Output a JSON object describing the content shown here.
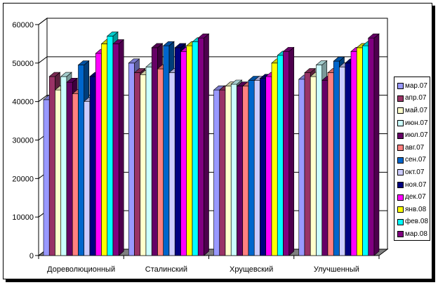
{
  "chart_data": {
    "type": "bar",
    "categories": [
      "Дореволюционный",
      "Сталинский",
      "Хрущевский",
      "Улучшенный"
    ],
    "y_ticks": [
      "0",
      "10000",
      "20000",
      "30000",
      "40000",
      "50000",
      "60000"
    ],
    "ylim": [
      0,
      60000
    ],
    "grid": true,
    "legend_position": "right",
    "series": [
      {
        "name": "мар.07",
        "color": "#9999ff",
        "values": [
          40500,
          50000,
          43000,
          45800
        ]
      },
      {
        "name": "апр.07",
        "color": "#993366",
        "values": [
          46500,
          47500,
          43000,
          47500
        ]
      },
      {
        "name": "май.07",
        "color": "#ffffcc",
        "values": [
          43000,
          47000,
          44000,
          46500
        ]
      },
      {
        "name": "июн.07",
        "color": "#ccffff",
        "values": [
          46500,
          49000,
          44500,
          49500
        ]
      },
      {
        "name": "июл.07",
        "color": "#660066",
        "values": [
          45000,
          54000,
          44000,
          45500
        ]
      },
      {
        "name": "авг.07",
        "color": "#ff8080",
        "values": [
          42000,
          48500,
          44000,
          47500
        ]
      },
      {
        "name": "сен.07",
        "color": "#0066cc",
        "values": [
          49500,
          54500,
          45500,
          50500
        ]
      },
      {
        "name": "окт.07",
        "color": "#ccccff",
        "values": [
          40000,
          47500,
          45500,
          49000
        ]
      },
      {
        "name": "ноя.07",
        "color": "#000080",
        "values": [
          46500,
          54000,
          46000,
          50000
        ]
      },
      {
        "name": "дек.07",
        "color": "#ff00ff",
        "values": [
          52500,
          53000,
          46500,
          53000
        ]
      },
      {
        "name": "янв.08",
        "color": "#ffff00",
        "values": [
          55000,
          54500,
          50000,
          54000
        ]
      },
      {
        "name": "фев.08",
        "color": "#00ffff",
        "values": [
          57000,
          55500,
          52000,
          54500
        ]
      },
      {
        "name": "мар.08",
        "color": "#800080",
        "values": [
          55000,
          56500,
          53000,
          56500
        ]
      }
    ]
  }
}
